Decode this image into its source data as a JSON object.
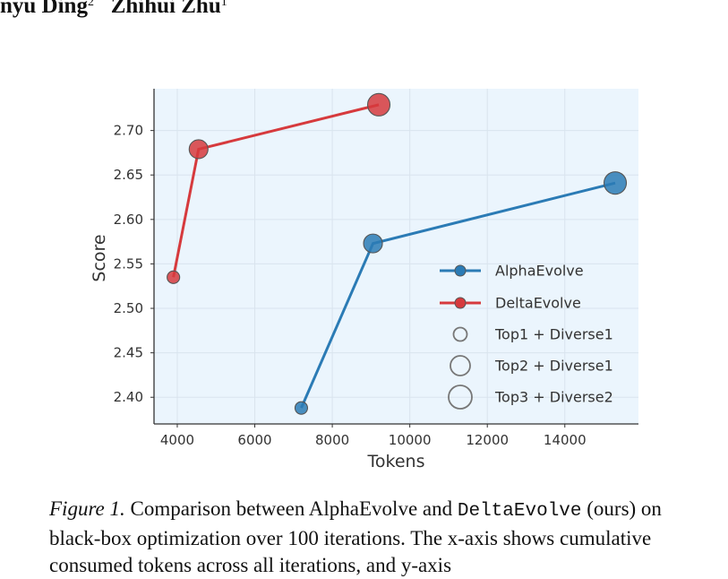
{
  "authors": {
    "author1_name": "nyu Ding",
    "author1_sup": "2",
    "author2_name": "Zhihui Zhu",
    "author2_sup": "1"
  },
  "chart_data": {
    "type": "scatter",
    "xlabel": "Tokens",
    "ylabel": "Score",
    "xlim": [
      3400,
      15900
    ],
    "ylim": [
      2.37,
      2.747
    ],
    "xticks": [
      4000,
      6000,
      8000,
      10000,
      12000,
      14000
    ],
    "yticks": [
      2.4,
      2.45,
      2.5,
      2.55,
      2.6,
      2.65,
      2.7
    ],
    "grid": true,
    "legend_position": "lower-right",
    "series": [
      {
        "name": "AlphaEvolve",
        "color": "#2b7bb5",
        "points": [
          {
            "x": 7200,
            "y": 2.388,
            "size_class": 1
          },
          {
            "x": 9050,
            "y": 2.573,
            "size_class": 2
          },
          {
            "x": 15300,
            "y": 2.641,
            "size_class": 3
          }
        ]
      },
      {
        "name": "DeltaEvolve",
        "color": "#d63a3d",
        "points": [
          {
            "x": 3900,
            "y": 2.535,
            "size_class": 1
          },
          {
            "x": 4550,
            "y": 2.679,
            "size_class": 2
          },
          {
            "x": 9200,
            "y": 2.729,
            "size_class": 3
          }
        ]
      }
    ],
    "size_legend": [
      "Top1 + Diverse1",
      "Top2 + Diverse1",
      "Top3 + Diverse2"
    ]
  },
  "caption": {
    "figure_label": "Figure 1.",
    "text_part1": "Comparison between AlphaEvolve and",
    "method_name": "DeltaEvolve",
    "text_part2": "(ours) on black-box optimization over 100 iterations. The x-axis",
    "text_part3": "shows cumulative consumed tokens across all iterations, and y-axis"
  }
}
